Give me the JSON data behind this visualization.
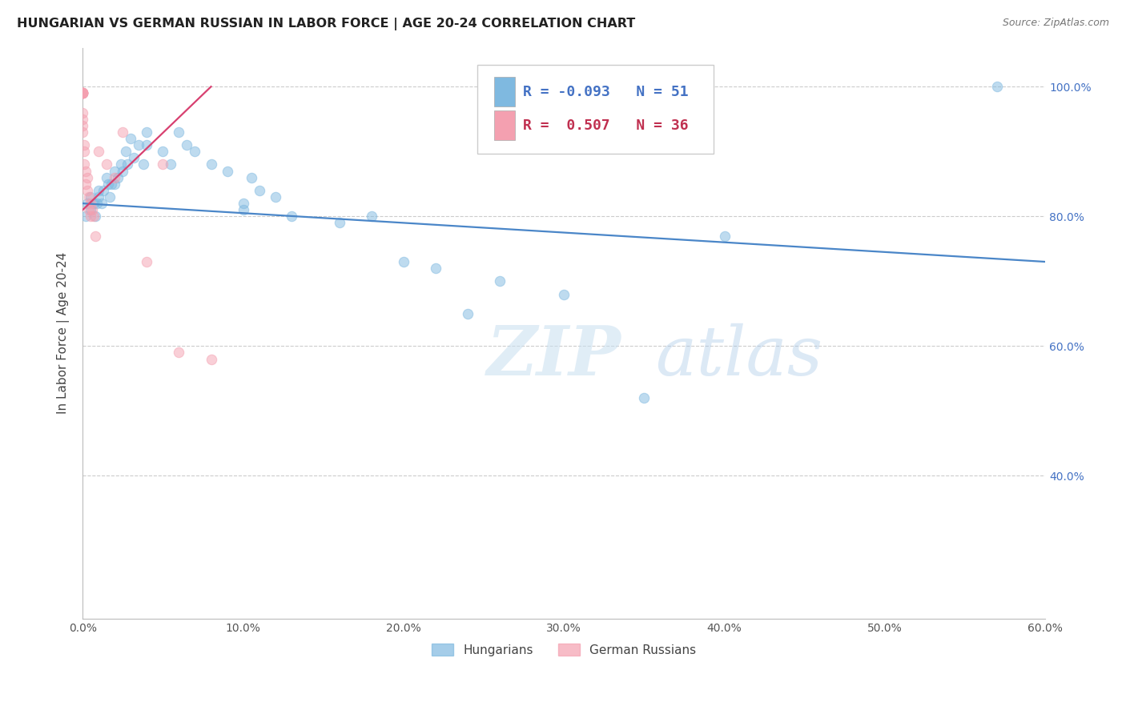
{
  "title": "HUNGARIAN VS GERMAN RUSSIAN IN LABOR FORCE | AGE 20-24 CORRELATION CHART",
  "source": "Source: ZipAtlas.com",
  "ylabel": "In Labor Force | Age 20-24",
  "xlim": [
    0.0,
    0.6
  ],
  "ylim": [
    0.18,
    1.06
  ],
  "xticks": [
    0.0,
    0.1,
    0.2,
    0.3,
    0.4,
    0.5,
    0.6
  ],
  "yticks": [
    0.4,
    0.6,
    0.8,
    1.0
  ],
  "ytick_labels": [
    "40.0%",
    "60.0%",
    "80.0%",
    "100.0%"
  ],
  "xtick_labels": [
    "0.0%",
    "10.0%",
    "20.0%",
    "30.0%",
    "40.0%",
    "50.0%",
    "60.0%"
  ],
  "blue_R": "-0.093",
  "blue_N": "51",
  "pink_R": "0.507",
  "pink_N": "36",
  "blue_color": "#7fb9e0",
  "pink_color": "#f4a0b0",
  "blue_line_color": "#4a86c8",
  "pink_line_color": "#d84070",
  "blue_scatter_x": [
    0.002,
    0.003,
    0.005,
    0.005,
    0.007,
    0.008,
    0.009,
    0.01,
    0.01,
    0.012,
    0.013,
    0.015,
    0.016,
    0.017,
    0.018,
    0.02,
    0.02,
    0.022,
    0.024,
    0.025,
    0.027,
    0.028,
    0.03,
    0.032,
    0.035,
    0.038,
    0.04,
    0.04,
    0.05,
    0.055,
    0.06,
    0.065,
    0.07,
    0.08,
    0.09,
    0.1,
    0.1,
    0.105,
    0.11,
    0.12,
    0.13,
    0.16,
    0.18,
    0.2,
    0.22,
    0.24,
    0.26,
    0.3,
    0.35,
    0.4,
    0.57
  ],
  "blue_scatter_y": [
    0.8,
    0.82,
    0.81,
    0.83,
    0.82,
    0.8,
    0.82,
    0.84,
    0.83,
    0.82,
    0.84,
    0.86,
    0.85,
    0.83,
    0.85,
    0.87,
    0.85,
    0.86,
    0.88,
    0.87,
    0.9,
    0.88,
    0.92,
    0.89,
    0.91,
    0.88,
    0.93,
    0.91,
    0.9,
    0.88,
    0.93,
    0.91,
    0.9,
    0.88,
    0.87,
    0.81,
    0.82,
    0.86,
    0.84,
    0.83,
    0.8,
    0.79,
    0.8,
    0.73,
    0.72,
    0.65,
    0.7,
    0.68,
    0.52,
    0.77,
    1.0
  ],
  "pink_scatter_x": [
    0.0,
    0.0,
    0.0,
    0.0,
    0.0,
    0.0,
    0.0,
    0.0,
    0.0,
    0.0,
    0.0,
    0.0,
    0.0,
    0.0,
    0.001,
    0.001,
    0.001,
    0.002,
    0.002,
    0.003,
    0.003,
    0.004,
    0.004,
    0.005,
    0.005,
    0.006,
    0.007,
    0.008,
    0.01,
    0.015,
    0.02,
    0.025,
    0.04,
    0.05,
    0.06,
    0.08
  ],
  "pink_scatter_y": [
    0.99,
    0.99,
    0.99,
    0.99,
    0.99,
    0.99,
    0.99,
    0.99,
    0.99,
    0.99,
    0.96,
    0.95,
    0.94,
    0.93,
    0.91,
    0.9,
    0.88,
    0.87,
    0.85,
    0.86,
    0.84,
    0.83,
    0.81,
    0.8,
    0.82,
    0.81,
    0.8,
    0.77,
    0.9,
    0.88,
    0.86,
    0.93,
    0.73,
    0.88,
    0.59,
    0.58
  ],
  "blue_trend_x": [
    0.0,
    0.6
  ],
  "blue_trend_y": [
    0.82,
    0.73
  ],
  "pink_trend_x": [
    0.0,
    0.08
  ],
  "pink_trend_y": [
    0.81,
    1.0
  ],
  "watermark_line1": "ZIP",
  "watermark_line2": "atlas",
  "legend_labels": [
    "Hungarians",
    "German Russians"
  ],
  "background_color": "#ffffff",
  "grid_color": "#cccccc"
}
